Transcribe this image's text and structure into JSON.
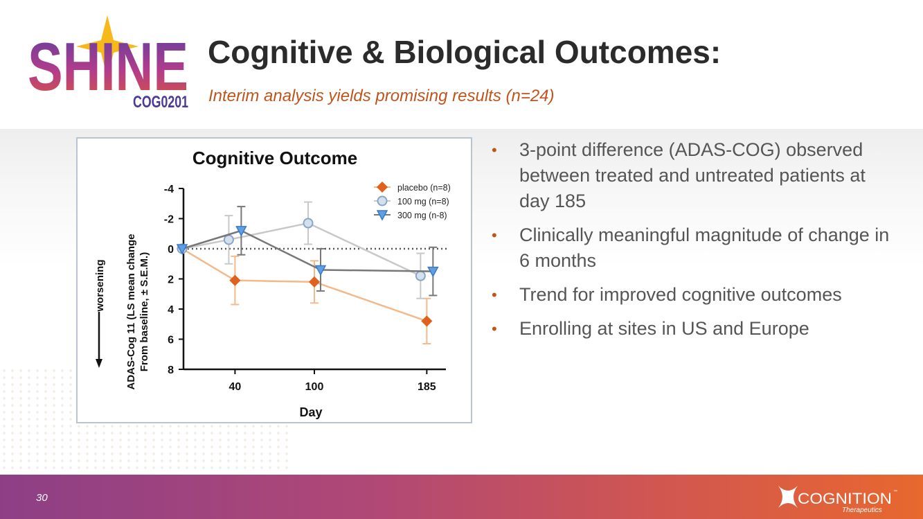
{
  "logo": {
    "word": "SHINE",
    "sub": "COG0201"
  },
  "header": {
    "title": "Cognitive & Biological Outcomes:",
    "subtitle": "Interim analysis yields promising results (n=24)"
  },
  "bullets": [
    "3-point difference (ADAS-COG) observed between treated and untreated patients at day 185",
    "Clinically meaningful magnitude of change in 6 months",
    "Trend for improved cognitive outcomes",
    "Enrolling at sites in US and Europe"
  ],
  "footer": {
    "page": "30",
    "brand": "COGNITION",
    "brand_sub": "Therapeutics"
  },
  "chart_data": {
    "type": "line",
    "title": "Cognitive Outcome",
    "xlabel": "Day",
    "ylabel_line1": "ADAS-Cog 11 (LS mean change",
    "ylabel_line2": "From baseline, ± S.E.M.)",
    "direction_label": "worsening",
    "x_ticks": [
      40,
      100,
      185
    ],
    "y_ticks": [
      -4,
      -2,
      0,
      2,
      4,
      6,
      8
    ],
    "ylim": [
      8,
      -4
    ],
    "y_inverted": true,
    "legend_position": "top-right",
    "baseline_dotted_at": 0,
    "series": [
      {
        "name": "placebo (n=8)",
        "marker": "diamond",
        "color": "#e0611e",
        "line_color": "#f4b98a",
        "fill": "#e0611e",
        "x": [
          0,
          40,
          100,
          185
        ],
        "y": [
          0,
          2.1,
          2.2,
          4.8
        ],
        "err": [
          0,
          1.6,
          1.4,
          1.5
        ]
      },
      {
        "name": "100 mg (n=8)",
        "marker": "circle",
        "color": "#8aa4c4",
        "line_color": "#c8c8c8",
        "fill": "#d4e0ee",
        "x": [
          0,
          40,
          100,
          185
        ],
        "y": [
          0,
          -0.6,
          -1.7,
          1.8
        ],
        "err": [
          0,
          1.6,
          1.4,
          1.5
        ]
      },
      {
        "name": "300 mg (n-8)",
        "marker": "triangle-down",
        "color": "#3a78c9",
        "line_color": "#777777",
        "fill": "#5fa0e0",
        "x": [
          0,
          40,
          100,
          185
        ],
        "y": [
          0,
          -1.2,
          1.4,
          1.5
        ],
        "err": [
          0,
          1.6,
          1.4,
          1.6
        ]
      }
    ]
  }
}
